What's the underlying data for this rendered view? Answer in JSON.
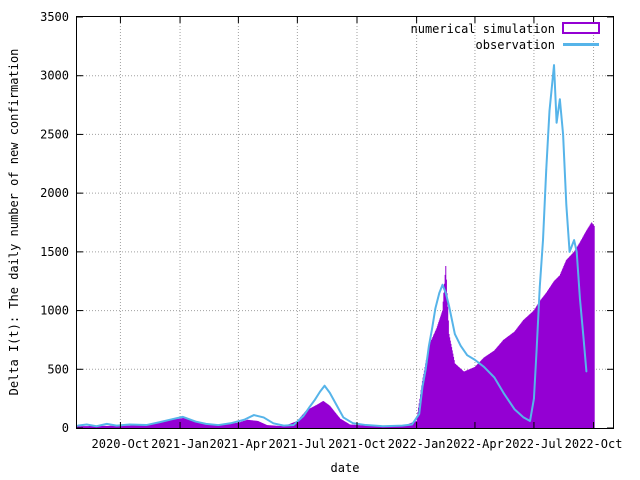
{
  "chart_data": {
    "type": "area",
    "xlabel": "date",
    "ylabel": "Delta I(t): The daily number of new confirmation",
    "ylim": [
      0,
      3500
    ],
    "y_ticks": [
      0,
      500,
      1000,
      1500,
      2000,
      2500,
      3000,
      3500
    ],
    "x_range": [
      "2020-07-26",
      "2022-10-31"
    ],
    "x_ticks": [
      {
        "date": "2020-10-01",
        "label": "2020-Oct"
      },
      {
        "date": "2021-01-01",
        "label": "2021-Jan"
      },
      {
        "date": "2021-04-01",
        "label": "2021-Apr"
      },
      {
        "date": "2021-07-01",
        "label": "2021-Jul"
      },
      {
        "date": "2021-10-01",
        "label": "2021-Oct"
      },
      {
        "date": "2022-01-01",
        "label": "2022-Jan"
      },
      {
        "date": "2022-04-01",
        "label": "2022-Apr"
      },
      {
        "date": "2022-07-01",
        "label": "2022-Jul"
      },
      {
        "date": "2022-10-01",
        "label": "2022-Oct"
      }
    ],
    "grid": true,
    "legend_position": "top-right",
    "series": [
      {
        "name": "numerical simulation",
        "style": "impulses",
        "color": "#9400d3",
        "points": [
          [
            "2020-07-27",
            15
          ],
          [
            "2020-09-01",
            18
          ],
          [
            "2020-10-15",
            20
          ],
          [
            "2020-11-15",
            35
          ],
          [
            "2020-12-01",
            50
          ],
          [
            "2020-12-15",
            70
          ],
          [
            "2021-01-01",
            80
          ],
          [
            "2021-01-10",
            90
          ],
          [
            "2021-01-20",
            60
          ],
          [
            "2021-02-10",
            30
          ],
          [
            "2021-03-01",
            25
          ],
          [
            "2021-04-01",
            45
          ],
          [
            "2021-04-15",
            70
          ],
          [
            "2021-05-01",
            60
          ],
          [
            "2021-05-15",
            25
          ],
          [
            "2021-06-10",
            15
          ],
          [
            "2021-07-01",
            60
          ],
          [
            "2021-07-15",
            150
          ],
          [
            "2021-08-01",
            200
          ],
          [
            "2021-08-10",
            230
          ],
          [
            "2021-08-20",
            190
          ],
          [
            "2021-09-05",
            80
          ],
          [
            "2021-09-20",
            30
          ],
          [
            "2021-10-15",
            20
          ],
          [
            "2021-11-15",
            20
          ],
          [
            "2021-12-15",
            25
          ],
          [
            "2022-01-01",
            60
          ],
          [
            "2022-01-10",
            400
          ],
          [
            "2022-01-20",
            700
          ],
          [
            "2022-02-01",
            850
          ],
          [
            "2022-02-10",
            1000
          ],
          [
            "2022-02-15",
            1380
          ],
          [
            "2022-02-20",
            800
          ],
          [
            "2022-03-01",
            550
          ],
          [
            "2022-03-15",
            480
          ],
          [
            "2022-04-01",
            520
          ],
          [
            "2022-04-15",
            600
          ],
          [
            "2022-05-01",
            660
          ],
          [
            "2022-05-15",
            750
          ],
          [
            "2022-06-01",
            820
          ],
          [
            "2022-06-15",
            920
          ],
          [
            "2022-07-01",
            1000
          ],
          [
            "2022-07-10",
            1080
          ],
          [
            "2022-07-20",
            1150
          ],
          [
            "2022-08-01",
            1250
          ],
          [
            "2022-08-10",
            1300
          ],
          [
            "2022-08-20",
            1430
          ],
          [
            "2022-09-01",
            1500
          ],
          [
            "2022-09-10",
            1580
          ],
          [
            "2022-09-20",
            1680
          ],
          [
            "2022-09-28",
            1750
          ],
          [
            "2022-10-02",
            1720
          ]
        ]
      },
      {
        "name": "observation",
        "style": "lines",
        "color": "#56b4e9",
        "points": [
          [
            "2020-07-27",
            20
          ],
          [
            "2020-08-10",
            30
          ],
          [
            "2020-08-25",
            15
          ],
          [
            "2020-09-10",
            35
          ],
          [
            "2020-09-25",
            20
          ],
          [
            "2020-10-15",
            30
          ],
          [
            "2020-11-10",
            25
          ],
          [
            "2020-12-01",
            50
          ],
          [
            "2020-12-20",
            75
          ],
          [
            "2021-01-05",
            95
          ],
          [
            "2021-01-15",
            75
          ],
          [
            "2021-01-25",
            55
          ],
          [
            "2021-02-10",
            35
          ],
          [
            "2021-03-01",
            25
          ],
          [
            "2021-03-20",
            40
          ],
          [
            "2021-04-10",
            70
          ],
          [
            "2021-04-25",
            110
          ],
          [
            "2021-05-10",
            90
          ],
          [
            "2021-05-25",
            40
          ],
          [
            "2021-06-10",
            20
          ],
          [
            "2021-06-25",
            25
          ],
          [
            "2021-07-10",
            100
          ],
          [
            "2021-07-20",
            180
          ],
          [
            "2021-07-28",
            240
          ],
          [
            "2021-08-05",
            310
          ],
          [
            "2021-08-12",
            360
          ],
          [
            "2021-08-20",
            300
          ],
          [
            "2021-08-30",
            200
          ],
          [
            "2021-09-10",
            90
          ],
          [
            "2021-09-25",
            40
          ],
          [
            "2021-10-15",
            25
          ],
          [
            "2021-11-10",
            15
          ],
          [
            "2021-12-10",
            20
          ],
          [
            "2021-12-25",
            30
          ],
          [
            "2022-01-05",
            120
          ],
          [
            "2022-01-10",
            350
          ],
          [
            "2022-01-15",
            500
          ],
          [
            "2022-01-20",
            700
          ],
          [
            "2022-01-25",
            850
          ],
          [
            "2022-01-30",
            1020
          ],
          [
            "2022-02-05",
            1150
          ],
          [
            "2022-02-10",
            1220
          ],
          [
            "2022-02-15",
            1150
          ],
          [
            "2022-02-20",
            1040
          ],
          [
            "2022-03-01",
            800
          ],
          [
            "2022-03-10",
            700
          ],
          [
            "2022-03-20",
            620
          ],
          [
            "2022-04-01",
            580
          ],
          [
            "2022-04-15",
            520
          ],
          [
            "2022-05-01",
            430
          ],
          [
            "2022-05-15",
            300
          ],
          [
            "2022-06-01",
            160
          ],
          [
            "2022-06-15",
            90
          ],
          [
            "2022-06-25",
            60
          ],
          [
            "2022-07-01",
            250
          ],
          [
            "2022-07-05",
            650
          ],
          [
            "2022-07-10",
            1200
          ],
          [
            "2022-07-15",
            1600
          ],
          [
            "2022-07-20",
            2200
          ],
          [
            "2022-07-25",
            2700
          ],
          [
            "2022-08-01",
            3090
          ],
          [
            "2022-08-05",
            2600
          ],
          [
            "2022-08-10",
            2800
          ],
          [
            "2022-08-15",
            2500
          ],
          [
            "2022-08-20",
            1900
          ],
          [
            "2022-08-25",
            1500
          ],
          [
            "2022-09-01",
            1600
          ],
          [
            "2022-09-05",
            1500
          ],
          [
            "2022-09-10",
            1100
          ],
          [
            "2022-09-15",
            800
          ],
          [
            "2022-09-20",
            480
          ]
        ]
      }
    ]
  }
}
